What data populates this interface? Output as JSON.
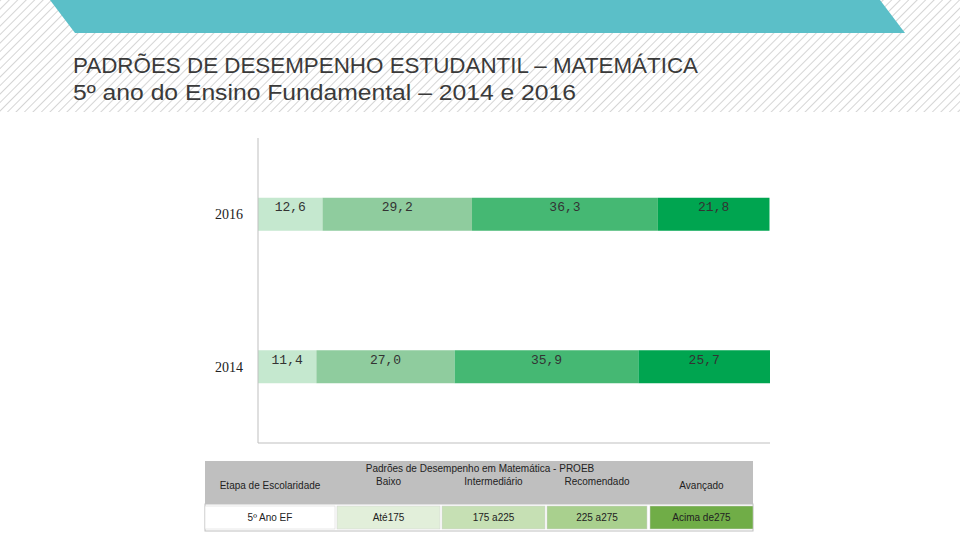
{
  "chart_data": {
    "type": "bar",
    "orientation": "horizontal",
    "stacked": true,
    "title": "PADRÕES DE DESEMPENHO ESTUDANTIL – MATEMÁTICA",
    "subtitle": "5º ano do Ensino Fundamental – 2014 e 2016",
    "categories": [
      "2016",
      "2014"
    ],
    "series": [
      {
        "name": "Baixo",
        "color": "#c5e8cf",
        "values": [
          12.6,
          11.4
        ],
        "value_labels": [
          "12,6",
          "11,4"
        ]
      },
      {
        "name": "Intermediário",
        "color": "#8fcc9e",
        "values": [
          29.2,
          27.0
        ],
        "value_labels": [
          "29,2",
          "27,0"
        ]
      },
      {
        "name": "Recomendado",
        "color": "#45b873",
        "values": [
          36.3,
          35.9
        ],
        "value_labels": [
          "36,3",
          "35,9"
        ]
      },
      {
        "name": "Avançado",
        "color": "#00a550",
        "values": [
          21.8,
          25.7
        ],
        "value_labels": [
          "21,8",
          "25,7"
        ]
      }
    ],
    "xlim": [
      0,
      100
    ],
    "data_labels": true,
    "tick_labels": "y",
    "grid": false
  },
  "table": {
    "title": "Padrões de Desempenho em Matemática - PROEB",
    "column_header": "Etapa de Escolaridade",
    "rows": [
      [
        "5º Ano EF",
        "Até175",
        "175 a225",
        "225 a275",
        "Acima de275"
      ]
    ]
  }
}
